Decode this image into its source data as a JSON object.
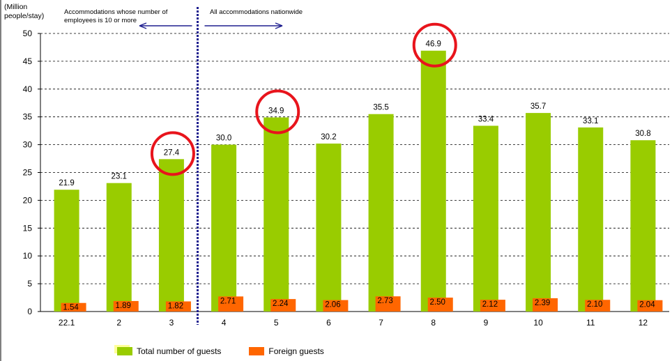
{
  "chart_data": {
    "type": "bar",
    "ylabel": "(Million people/stay)",
    "ylim": [
      0,
      50
    ],
    "yticks": [
      0,
      5,
      10,
      15,
      20,
      25,
      30,
      35,
      40,
      45,
      50
    ],
    "grid": "horizontal dashed",
    "categories": [
      "22.1",
      "2",
      "3",
      "4",
      "5",
      "6",
      "7",
      "8",
      "9",
      "10",
      "11",
      "12"
    ],
    "series": [
      {
        "name": "Total number of guests",
        "color": "#99cc00",
        "values": [
          21.9,
          23.1,
          27.4,
          30.0,
          34.9,
          30.2,
          35.5,
          46.9,
          33.4,
          35.7,
          33.1,
          30.8
        ],
        "labels": [
          "21.9",
          "23.1",
          "27.4",
          "30.0",
          "34.9",
          "30.2",
          "35.5",
          "46.9",
          "33.4",
          "35.7",
          "33.1",
          "30.8"
        ]
      },
      {
        "name": "Foreign guests",
        "color": "#ff6600",
        "values": [
          1.54,
          1.89,
          1.82,
          2.71,
          2.24,
          2.06,
          2.73,
          2.5,
          2.12,
          2.39,
          2.1,
          2.04
        ],
        "labels": [
          "1.54",
          "1.89",
          "1.82",
          "2.71",
          "2.24",
          "2.06",
          "2.73",
          "2.50",
          "2.12",
          "2.39",
          "2.10",
          "2.04"
        ]
      }
    ],
    "highlighted_categories": [
      "3",
      "5",
      "8"
    ],
    "highlight_color": "#e8141c",
    "annotations": {
      "left": "Accommodations whose number of employees is 10 or more",
      "right": "All accommodations nationwide",
      "divider_after_category": "3",
      "arrow_color": "#1f1f8f"
    },
    "legend_placement": "bottom"
  }
}
